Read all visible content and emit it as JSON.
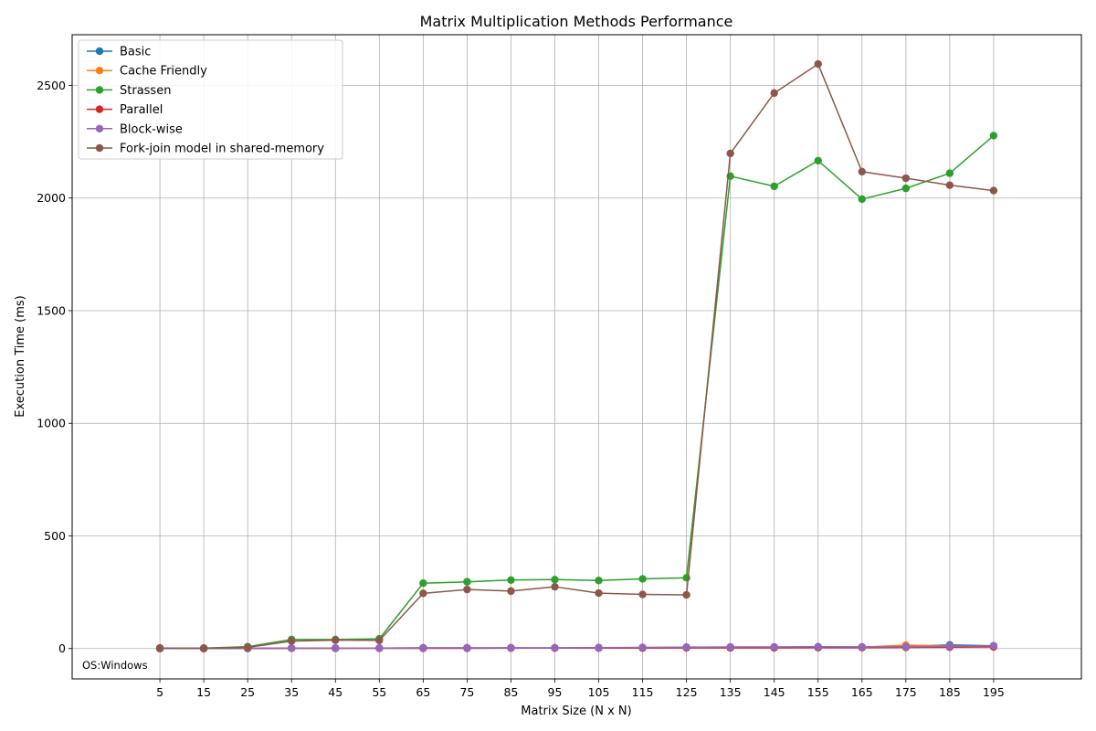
{
  "chart_data": {
    "type": "line",
    "title": "Matrix Multiplication Methods Performance",
    "xlabel": "Matrix Size (N x N)",
    "ylabel": "Execution Time (ms)",
    "x": [
      5,
      15,
      25,
      35,
      45,
      55,
      65,
      75,
      85,
      95,
      105,
      115,
      125,
      135,
      145,
      155,
      165,
      175,
      185,
      195
    ],
    "xlim": [
      -15,
      215
    ],
    "ylim": [
      -135,
      2725
    ],
    "yticks": [
      0,
      500,
      1000,
      1500,
      2000,
      2500
    ],
    "grid": true,
    "legend_position": "top-left",
    "annotation": "OS:Windows",
    "series": [
      {
        "name": "Basic",
        "color": "#1f77b4",
        "values": [
          0,
          0,
          1,
          2,
          2,
          2,
          3,
          3,
          3,
          3,
          4,
          4,
          5,
          5,
          6,
          7,
          7,
          9,
          16,
          12
        ]
      },
      {
        "name": "Cache Friendly",
        "color": "#ff7f0e",
        "values": [
          0,
          0,
          1,
          1,
          1,
          2,
          2,
          2,
          2,
          2,
          3,
          3,
          4,
          4,
          4,
          5,
          6,
          15,
          11,
          9
        ]
      },
      {
        "name": "Strassen",
        "color": "#2ca02c",
        "values": [
          2,
          2,
          8,
          40,
          40,
          43,
          290,
          296,
          304,
          306,
          302,
          309,
          314,
          2097,
          2052,
          2166,
          1995,
          2043,
          2110,
          2277
        ]
      },
      {
        "name": "Parallel",
        "color": "#d62728",
        "values": [
          0,
          0,
          0,
          1,
          1,
          1,
          1,
          1,
          2,
          2,
          2,
          2,
          3,
          3,
          3,
          4,
          4,
          5,
          6,
          7
        ]
      },
      {
        "name": "Block-wise",
        "color": "#9467bd",
        "values": [
          0,
          0,
          1,
          2,
          2,
          2,
          3,
          3,
          3,
          3,
          4,
          5,
          6,
          7,
          7,
          8,
          7,
          8,
          10,
          12
        ]
      },
      {
        "name": "Fork-join model in shared-memory",
        "color": "#8c564b",
        "values": [
          2,
          1,
          5,
          33,
          37,
          36,
          245,
          262,
          255,
          274,
          246,
          240,
          238,
          2198,
          2466,
          2595,
          2117,
          2088,
          2057,
          2033
        ]
      }
    ]
  }
}
